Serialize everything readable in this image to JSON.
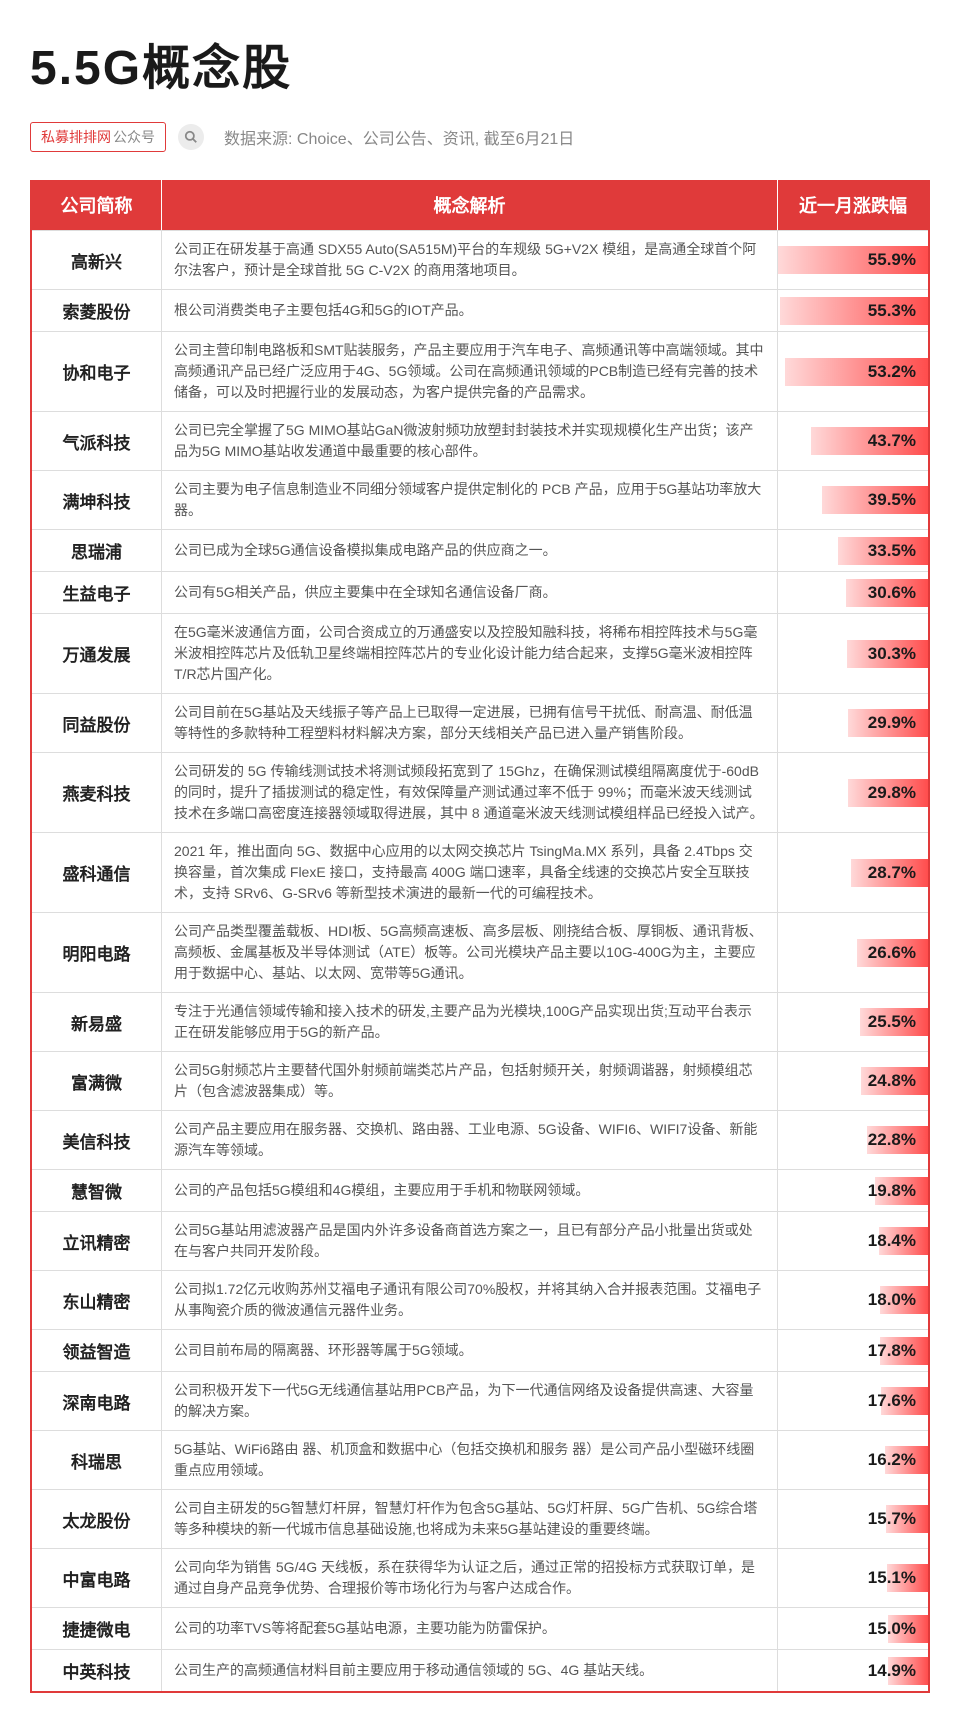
{
  "title": "5.5G概念股",
  "tag_red": "私募排排网",
  "tag_gray": "公众号",
  "source": "数据来源: Choice、公司公告、资讯, 截至6月21日",
  "columns": {
    "name": "公司简称",
    "desc": "概念解析",
    "pct": "近一月涨跌幅"
  },
  "max_pct": 55.9,
  "bar_gradient_from": "#ffd9d9",
  "bar_gradient_to": "#ff4d4d",
  "header_bg": "#e03a3a",
  "rows": [
    {
      "name": "高新兴",
      "desc": "公司正在研发基于高通 SDX55 Auto(SA515M)平台的车规级 5G+V2X 模组，是高通全球首个阿尔法客户，预计是全球首批 5G C-V2X 的商用落地项目。",
      "pct": 55.9
    },
    {
      "name": "索菱股份",
      "desc": "根公司消费类电子主要包括4G和5G的IOT产品。",
      "pct": 55.3
    },
    {
      "name": "协和电子",
      "desc": "公司主营印制电路板和SMT贴装服务，产品主要应用于汽车电子、高频通讯等中高端领域。其中高频通讯产品已经广泛应用于4G、5G领域。公司在高频通讯领域的PCB制造已经有完善的技术储备，可以及时把握行业的发展动态，为客户提供完备的产品需求。",
      "pct": 53.2
    },
    {
      "name": "气派科技",
      "desc": "公司已完全掌握了5G MIMO基站GaN微波射频功放塑封封装技术并实现规模化生产出货；该产品为5G MIMO基站收发通道中最重要的核心部件。",
      "pct": 43.7
    },
    {
      "name": "满坤科技",
      "desc": "公司主要为电子信息制造业不同细分领域客户提供定制化的 PCB 产品，应用于5G基站功率放大器。",
      "pct": 39.5
    },
    {
      "name": "思瑞浦",
      "desc": "公司已成为全球5G通信设备模拟集成电路产品的供应商之一。",
      "pct": 33.5
    },
    {
      "name": "生益电子",
      "desc": "公司有5G相关产品，供应主要集中在全球知名通信设备厂商。",
      "pct": 30.6
    },
    {
      "name": "万通发展",
      "desc": "在5G毫米波通信方面，公司合资成立的万通盛安以及控股知融科技，将稀布相控阵技术与5G毫米波相控阵芯片及低轨卫星终端相控阵芯片的专业化设计能力结合起来，支撑5G毫米波相控阵T/R芯片国产化。",
      "pct": 30.3
    },
    {
      "name": "同益股份",
      "desc": "公司目前在5G基站及天线振子等产品上已取得一定进展，已拥有信号干扰低、耐高温、耐低温等特性的多款特种工程塑料材料解决方案，部分天线相关产品已进入量产销售阶段。",
      "pct": 29.9
    },
    {
      "name": "燕麦科技",
      "desc": "公司研发的 5G 传输线测试技术将测试频段拓宽到了 15Ghz，在确保测试模组隔离度优于-60dB 的同时，提升了插拔测试的稳定性，有效保障量产测试通过率不低于 99%；而毫米波天线测试技术在多端口高密度连接器领域取得进展，其中 8 通道毫米波天线测试模组样品已经投入试产。",
      "pct": 29.8
    },
    {
      "name": "盛科通信",
      "desc": "2021 年，推出面向 5G、数据中心应用的以太网交换芯片 TsingMa.MX 系列，具备 2.4Tbps 交换容量，首次集成 FlexE 接口，支持最高 400G 端口速率，具备全线速的交换芯片安全互联技术，支持 SRv6、G-SRv6 等新型技术演进的最新一代的可编程技术。",
      "pct": 28.7
    },
    {
      "name": "明阳电路",
      "desc": "公司产品类型覆盖载板、HDI板、5G高频高速板、高多层板、刚挠结合板、厚铜板、通讯背板、高频板、金属基板及半导体测试（ATE）板等。公司光模块产品主要以10G-400G为主，主要应用于数据中心、基站、以太网、宽带等5G通讯。",
      "pct": 26.6
    },
    {
      "name": "新易盛",
      "desc": "专注于光通信领域传输和接入技术的研发,主要产品为光模块,100G产品实现出货;互动平台表示正在研发能够应用于5G的新产品。",
      "pct": 25.5
    },
    {
      "name": "富满微",
      "desc": "公司5G射频芯片主要替代国外射频前端类芯片产品，包括射频开关，射频调谐器，射频模组芯片（包含滤波器集成）等。",
      "pct": 24.8
    },
    {
      "name": "美信科技",
      "desc": "公司产品主要应用在服务器、交换机、路由器、工业电源、5G设备、WIFI6、WIFI7设备、新能源汽车等领域。",
      "pct": 22.8
    },
    {
      "name": "慧智微",
      "desc": "公司的产品包括5G模组和4G模组，主要应用于手机和物联网领域。",
      "pct": 19.8
    },
    {
      "name": "立讯精密",
      "desc": "公司5G基站用滤波器产品是国内外许多设备商首选方案之一，且已有部分产品小批量出货或处在与客户共同开发阶段。",
      "pct": 18.4
    },
    {
      "name": "东山精密",
      "desc": "公司拟1.72亿元收购苏州艾福电子通讯有限公司70%股权，并将其纳入合并报表范围。艾福电子从事陶瓷介质的微波通信元器件业务。",
      "pct": 18.0
    },
    {
      "name": "领益智造",
      "desc": "公司目前布局的隔离器、环形器等属于5G领域。",
      "pct": 17.8
    },
    {
      "name": "深南电路",
      "desc": "公司积极开发下一代5G无线通信基站用PCB产品，为下一代通信网络及设备提供高速、大容量的解决方案。",
      "pct": 17.6
    },
    {
      "name": "科瑞思",
      "desc": "5G基站、WiFi6路由 器、机顶盒和数据中心（包括交换机和服务 器）是公司产品小型磁环线圈重点应用领域。",
      "pct": 16.2
    },
    {
      "name": "太龙股份",
      "desc": "公司自主研发的5G智慧灯杆屏，智慧灯杆作为包含5G基站、5G灯杆屏、5G广告机、5G综合塔等多种模块的新一代城市信息基础设施,也将成为未来5G基站建设的重要终端。",
      "pct": 15.7
    },
    {
      "name": "中富电路",
      "desc": "公司向华为销售 5G/4G 天线板，系在获得华为认证之后，通过正常的招投标方式获取订单，是通过自身产品竞争优势、合理报价等市场化行为与客户达成合作。",
      "pct": 15.1
    },
    {
      "name": "捷捷微电",
      "desc": "公司的功率TVS等将配套5G基站电源，主要功能为防雷保护。",
      "pct": 15.0
    },
    {
      "name": "中英科技",
      "desc": "公司生产的高频通信材料目前主要应用于移动通信领域的 5G、4G 基站天线。",
      "pct": 14.9
    }
  ]
}
